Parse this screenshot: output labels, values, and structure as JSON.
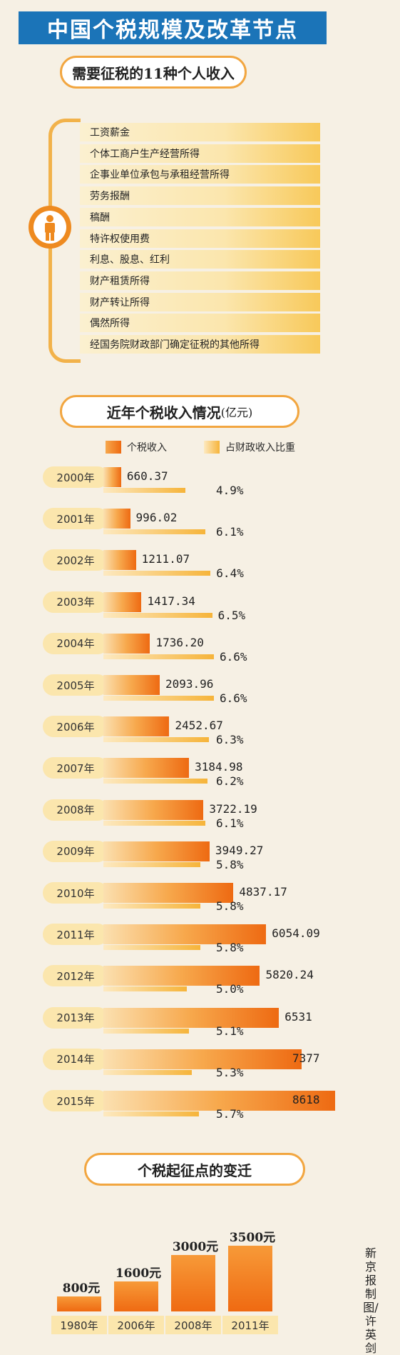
{
  "title": "中国个税规模及改革节点",
  "income_section": {
    "heading": "需要征税的11种个人收入",
    "items": [
      "工资薪金",
      "个体工商户生产经营所得",
      "企事业单位承包与承租经营所得",
      "劳务报酬",
      "稿酬",
      "特许权使用费",
      "利息、股息、红利",
      "财产租赁所得",
      "财产转让所得",
      "偶然所得",
      "经国务院财政部门确定征税的其他所得"
    ]
  },
  "revenue_section": {
    "heading": "近年个税收入情况",
    "unit": "(亿元)",
    "legend": [
      "个税收入",
      "占财政收入比重"
    ]
  },
  "threshold_section": {
    "heading": "个税起征点的变迁"
  },
  "credit": "新京报制图/许英剑",
  "colors": {
    "title_bg": "#1b74b8",
    "tax_bar": "#ee6a12",
    "ratio_bar": "#f6b43a",
    "pill_bg": "#fbe6ad"
  },
  "chart_data": [
    {
      "type": "bar",
      "title": "近年个税收入情况(亿元)",
      "categories": [
        "2000年",
        "2001年",
        "2002年",
        "2003年",
        "2004年",
        "2005年",
        "2006年",
        "2007年",
        "2008年",
        "2009年",
        "2010年",
        "2011年",
        "2012年",
        "2013年",
        "2014年",
        "2015年"
      ],
      "series": [
        {
          "name": "个税收入",
          "values": [
            660.37,
            996.02,
            1211.07,
            1417.34,
            1736.2,
            2093.96,
            2452.67,
            3184.98,
            3722.19,
            3949.27,
            4837.17,
            6054.09,
            5820.24,
            6531,
            7377,
            8618
          ],
          "labels": [
            "660.37",
            "996.02",
            "1211.07",
            "1417.34",
            "1736.20",
            "2093.96",
            "2452.67",
            "3184.98",
            "3722.19",
            "3949.27",
            "4837.17",
            "6054.09",
            "5820.24",
            "6531",
            "7377",
            "8618"
          ]
        },
        {
          "name": "占财政收入比重",
          "values": [
            4.9,
            6.1,
            6.4,
            6.5,
            6.6,
            6.6,
            6.3,
            6.2,
            6.1,
            5.8,
            5.8,
            5.8,
            5.0,
            5.1,
            5.3,
            5.7
          ],
          "labels": [
            "4.9%",
            "6.1%",
            "6.4%",
            "6.5%",
            "6.6%",
            "6.6%",
            "6.3%",
            "6.2%",
            "6.1%",
            "5.8%",
            "5.8%",
            "5.8%",
            "5.0%",
            "5.1%",
            "5.3%",
            "5.7%"
          ]
        }
      ]
    },
    {
      "type": "bar",
      "title": "个税起征点的变迁",
      "categories": [
        "1980年",
        "2006年",
        "2008年",
        "2011年"
      ],
      "values": [
        800,
        1600,
        3000,
        3500
      ],
      "labels": [
        "800元",
        "1600元",
        "3000元",
        "3500元"
      ]
    }
  ]
}
